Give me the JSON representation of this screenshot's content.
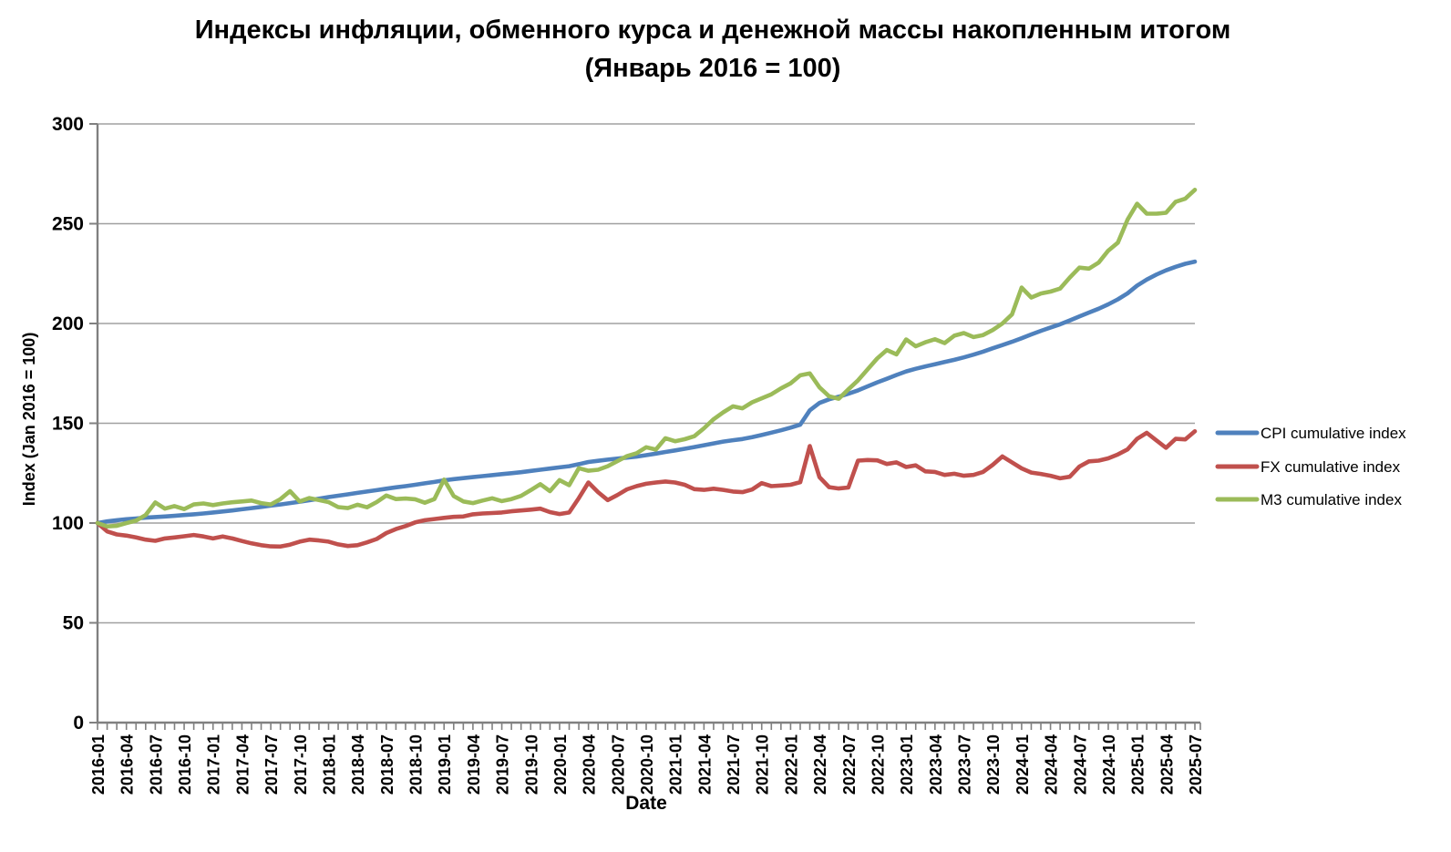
{
  "title": {
    "line1": "Индексы инфляции, обменного курса и денежной массы накопленным итогом",
    "line2": "(Январь 2016 = 100)"
  },
  "axes": {
    "y_title": "Index (Jan 2016 = 100)",
    "x_title": "Date",
    "y_ticks": [
      0,
      50,
      100,
      150,
      200,
      250,
      300
    ],
    "x_tick_labels": [
      "2016-01",
      "2016-04",
      "2016-07",
      "2016-10",
      "2017-01",
      "2017-04",
      "2017-07",
      "2017-10",
      "2018-01",
      "2018-04",
      "2018-07",
      "2018-10",
      "2019-01",
      "2019-04",
      "2019-07",
      "2019-10",
      "2020-01",
      "2020-04",
      "2020-07",
      "2020-10",
      "2021-01",
      "2021-04",
      "2021-07",
      "2021-10",
      "2022-01",
      "2022-04",
      "2022-07",
      "2022-10",
      "2023-01",
      "2023-04",
      "2023-07",
      "2023-10",
      "2024-01",
      "2024-04",
      "2024-07",
      "2024-10",
      "2025-01",
      "2025-04",
      "2025-07"
    ]
  },
  "legend": {
    "items": [
      {
        "label": "CPI cumulative index",
        "color": "#4F81BD"
      },
      {
        "label": "FX cumulative index",
        "color": "#C0504D"
      },
      {
        "label": "M3 cumulative index",
        "color": "#9BBB59"
      }
    ]
  },
  "colors": {
    "cpi": "#4F81BD",
    "fx": "#C0504D",
    "m3": "#9BBB59",
    "gridline": "#A0A0A0",
    "axis": "#808080"
  },
  "chart_data": {
    "type": "line",
    "title": "Индексы инфляции, обменного курса и денежной массы накопленным итогом (Январь 2016 = 100)",
    "xlabel": "Date",
    "ylabel": "Index (Jan 2016 = 100)",
    "ylim": [
      0,
      300
    ],
    "grid": true,
    "legend_position": "right",
    "x_tick_every_months": 3,
    "x": [
      "2016-01",
      "2016-02",
      "2016-03",
      "2016-04",
      "2016-05",
      "2016-06",
      "2016-07",
      "2016-08",
      "2016-09",
      "2016-10",
      "2016-11",
      "2016-12",
      "2017-01",
      "2017-02",
      "2017-03",
      "2017-04",
      "2017-05",
      "2017-06",
      "2017-07",
      "2017-08",
      "2017-09",
      "2017-10",
      "2017-11",
      "2017-12",
      "2018-01",
      "2018-02",
      "2018-03",
      "2018-04",
      "2018-05",
      "2018-06",
      "2018-07",
      "2018-08",
      "2018-09",
      "2018-10",
      "2018-11",
      "2018-12",
      "2019-01",
      "2019-02",
      "2019-03",
      "2019-04",
      "2019-05",
      "2019-06",
      "2019-07",
      "2019-08",
      "2019-09",
      "2019-10",
      "2019-11",
      "2019-12",
      "2020-01",
      "2020-02",
      "2020-03",
      "2020-04",
      "2020-05",
      "2020-06",
      "2020-07",
      "2020-08",
      "2020-09",
      "2020-10",
      "2020-11",
      "2020-12",
      "2021-01",
      "2021-02",
      "2021-03",
      "2021-04",
      "2021-05",
      "2021-06",
      "2021-07",
      "2021-08",
      "2021-09",
      "2021-10",
      "2021-11",
      "2021-12",
      "2022-01",
      "2022-02",
      "2022-03",
      "2022-04",
      "2022-05",
      "2022-06",
      "2022-07",
      "2022-08",
      "2022-09",
      "2022-10",
      "2022-11",
      "2022-12",
      "2023-01",
      "2023-02",
      "2023-03",
      "2023-04",
      "2023-05",
      "2023-06",
      "2023-07",
      "2023-08",
      "2023-09",
      "2023-10",
      "2023-11",
      "2023-12",
      "2024-01",
      "2024-02",
      "2024-03",
      "2024-04",
      "2024-05",
      "2024-06",
      "2024-07",
      "2024-08",
      "2024-09",
      "2024-10",
      "2024-11",
      "2024-12",
      "2025-01",
      "2025-02",
      "2025-03",
      "2025-04",
      "2025-05",
      "2025-06",
      "2025-07"
    ],
    "series": [
      {
        "name": "CPI cumulative index",
        "color": "#4F81BD",
        "values": [
          100,
          100.8,
          101.4,
          101.9,
          102.3,
          102.7,
          103.0,
          103.3,
          103.6,
          104.0,
          104.4,
          104.8,
          105.3,
          105.8,
          106.3,
          106.9,
          107.5,
          108.1,
          108.7,
          109.3,
          110.0,
          110.7,
          111.4,
          112.2,
          113.0,
          113.7,
          114.4,
          115.1,
          115.8,
          116.5,
          117.2,
          117.9,
          118.5,
          119.2,
          119.9,
          120.6,
          121.4,
          122.0,
          122.5,
          123.0,
          123.5,
          124.0,
          124.5,
          125.0,
          125.5,
          126.1,
          126.7,
          127.3,
          127.9,
          128.5,
          129.5,
          130.6,
          131.2,
          131.8,
          132.3,
          132.8,
          133.3,
          134.0,
          134.8,
          135.6,
          136.4,
          137.2,
          138.1,
          139.0,
          139.9,
          140.8,
          141.5,
          142.1,
          143.0,
          144.1,
          145.3,
          146.5,
          147.8,
          149.3,
          156.5,
          160.2,
          162.0,
          163.3,
          164.8,
          166.5,
          168.5,
          170.5,
          172.3,
          174.2,
          176.0,
          177.3,
          178.5,
          179.6,
          180.7,
          181.8,
          183.0,
          184.4,
          185.9,
          187.6,
          189.2,
          190.8,
          192.6,
          194.5,
          196.3,
          198.0,
          199.6,
          201.5,
          203.5,
          205.5,
          207.4,
          209.6,
          212.1,
          215.1,
          219.0,
          222.0,
          224.5,
          226.6,
          228.4,
          229.9,
          231.0
        ]
      },
      {
        "name": "FX cumulative index",
        "color": "#C0504D",
        "values": [
          100,
          95.8,
          94.3,
          93.7,
          92.8,
          91.7,
          91.1,
          92.3,
          92.8,
          93.4,
          94.0,
          93.3,
          92.3,
          93.3,
          92.3,
          91.0,
          89.8,
          88.9,
          88.3,
          88.2,
          89.2,
          90.7,
          91.7,
          91.3,
          90.7,
          89.3,
          88.5,
          88.9,
          90.3,
          92.0,
          95.0,
          97.0,
          98.5,
          100.3,
          101.4,
          102.0,
          102.6,
          103.1,
          103.3,
          104.4,
          104.8,
          105.0,
          105.3,
          105.9,
          106.3,
          106.7,
          107.2,
          105.5,
          104.5,
          105.3,
          112.5,
          120.3,
          115.5,
          111.5,
          114.0,
          116.9,
          118.5,
          119.7,
          120.3,
          120.8,
          120.3,
          119.2,
          117.0,
          116.6,
          117.2,
          116.6,
          115.8,
          115.5,
          116.8,
          120.0,
          118.5,
          118.8,
          119.2,
          120.5,
          138.6,
          123.0,
          118.0,
          117.3,
          117.8,
          131.3,
          131.6,
          131.4,
          129.6,
          130.4,
          128.1,
          128.9,
          125.9,
          125.6,
          124.1,
          124.7,
          123.7,
          124.1,
          125.6,
          129.2,
          133.4,
          130.4,
          127.4,
          125.3,
          124.6,
          123.7,
          122.4,
          123.2,
          128.3,
          130.9,
          131.3,
          132.4,
          134.4,
          136.9,
          142.2,
          145.2,
          141.4,
          137.7,
          142.2,
          141.9,
          146.0
        ]
      },
      {
        "name": "M3 cumulative index",
        "color": "#9BBB59",
        "values": [
          100,
          98.3,
          98.6,
          100.0,
          101.2,
          104.0,
          110.3,
          107.2,
          108.5,
          107.0,
          109.3,
          109.8,
          109.0,
          109.8,
          110.4,
          110.8,
          111.3,
          110.0,
          109.3,
          112.0,
          116.0,
          110.8,
          112.5,
          111.5,
          110.5,
          108.0,
          107.5,
          109.2,
          107.9,
          110.5,
          113.8,
          112.0,
          112.3,
          111.9,
          110.2,
          112.0,
          121.8,
          113.5,
          110.8,
          110.0,
          111.3,
          112.4,
          111.0,
          112.0,
          113.6,
          116.5,
          119.5,
          116.0,
          121.5,
          119.0,
          127.5,
          126.2,
          126.7,
          128.5,
          131.0,
          133.5,
          135.0,
          138.0,
          136.8,
          142.5,
          141.0,
          142.0,
          143.5,
          147.5,
          152.0,
          155.5,
          158.5,
          157.5,
          160.5,
          162.5,
          164.5,
          167.5,
          170.0,
          174.0,
          175.0,
          168.0,
          163.5,
          162.3,
          167.0,
          171.5,
          177.0,
          182.5,
          186.7,
          184.5,
          192.0,
          188.6,
          190.6,
          192.1,
          190.2,
          193.9,
          195.2,
          193.2,
          194.2,
          196.7,
          200.0,
          204.5,
          218.0,
          213.0,
          215.0,
          216.0,
          217.5,
          223.0,
          228.0,
          227.5,
          230.5,
          236.5,
          240.5,
          252.0,
          260.0,
          255.0,
          255.0,
          255.5,
          261.0,
          262.5,
          267.0
        ]
      }
    ]
  }
}
